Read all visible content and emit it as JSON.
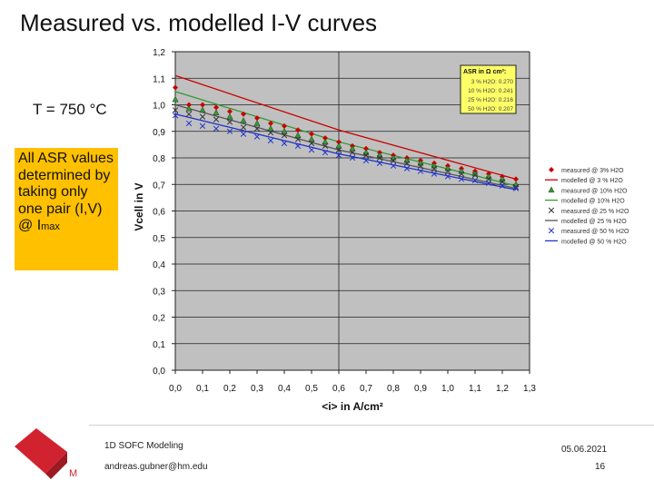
{
  "slide": {
    "title": "Measured vs. modelled I-V curves",
    "temperature": "T = 750 °C",
    "note_main": "All ASR values determined by taking only one pair (I,V) @ I",
    "note_sub": "max"
  },
  "chart_data": {
    "type": "line",
    "xlabel": "<i> in A/cm²",
    "ylabel": "Vcell in V",
    "xlim": [
      0.0,
      1.3
    ],
    "ylim": [
      0.0,
      1.2
    ],
    "xticks": [
      "0,0",
      "0,1",
      "0,2",
      "0,3",
      "0,4",
      "0,5",
      "0,6",
      "0,7",
      "0,8",
      "0,9",
      "1,0",
      "1,1",
      "1,2",
      "1,3"
    ],
    "yticks": [
      "0,0",
      "0,1",
      "0,2",
      "0,3",
      "0,4",
      "0,5",
      "0,6",
      "0,7",
      "0,8",
      "0,9",
      "1,0",
      "1,1",
      "1,2"
    ],
    "grid": true,
    "legend_position": "right",
    "asr_box": {
      "title": "ASR in Ω cm²:",
      "rows": [
        "3 % H2O: 0.270",
        "10 % H2O: 0.241",
        "25 % H2O: 0.216",
        "50 % H2O: 0.207"
      ]
    },
    "measured": [
      {
        "name": "measured @ 3% H2O",
        "color": "#cc0000",
        "marker": "diamond",
        "x": [
          0.0,
          0.05,
          0.1,
          0.15,
          0.2,
          0.25,
          0.3,
          0.35,
          0.4,
          0.45,
          0.5,
          0.55,
          0.6,
          0.65,
          0.7,
          0.75,
          0.8,
          0.85,
          0.9,
          0.95,
          1.0,
          1.05,
          1.1,
          1.15,
          1.2,
          1.25
        ],
        "y": [
          1.065,
          1.0,
          1.0,
          0.99,
          0.975,
          0.965,
          0.95,
          0.93,
          0.92,
          0.905,
          0.89,
          0.875,
          0.86,
          0.845,
          0.835,
          0.82,
          0.81,
          0.8,
          0.79,
          0.78,
          0.77,
          0.76,
          0.75,
          0.74,
          0.73,
          0.72
        ]
      },
      {
        "name": "measured @ 10% H2O",
        "color": "#339933",
        "marker": "triangle",
        "x": [
          0.0,
          0.05,
          0.1,
          0.15,
          0.2,
          0.25,
          0.3,
          0.35,
          0.4,
          0.45,
          0.5,
          0.55,
          0.6,
          0.65,
          0.7,
          0.75,
          0.8,
          0.85,
          0.9,
          0.95,
          1.0,
          1.05,
          1.1,
          1.15,
          1.2,
          1.25
        ],
        "y": [
          1.02,
          0.985,
          0.98,
          0.97,
          0.955,
          0.94,
          0.93,
          0.91,
          0.9,
          0.885,
          0.87,
          0.86,
          0.845,
          0.835,
          0.82,
          0.81,
          0.8,
          0.79,
          0.78,
          0.77,
          0.76,
          0.75,
          0.74,
          0.73,
          0.72,
          0.7
        ]
      },
      {
        "name": "measured @ 25 % H2O",
        "color": "#333333",
        "marker": "x",
        "x": [
          0.0,
          0.05,
          0.1,
          0.15,
          0.2,
          0.25,
          0.3,
          0.35,
          0.4,
          0.45,
          0.5,
          0.55,
          0.6,
          0.65,
          0.7,
          0.75,
          0.8,
          0.85,
          0.9,
          0.95,
          1.0,
          1.05,
          1.1,
          1.15,
          1.2,
          1.25
        ],
        "y": [
          0.98,
          0.965,
          0.955,
          0.945,
          0.935,
          0.915,
          0.91,
          0.895,
          0.885,
          0.87,
          0.855,
          0.845,
          0.83,
          0.82,
          0.81,
          0.8,
          0.79,
          0.78,
          0.77,
          0.76,
          0.75,
          0.74,
          0.735,
          0.72,
          0.71,
          0.69
        ]
      },
      {
        "name": "measured @ 50 % H2O",
        "color": "#2233cc",
        "marker": "x",
        "x": [
          0.0,
          0.05,
          0.1,
          0.15,
          0.2,
          0.25,
          0.3,
          0.35,
          0.4,
          0.45,
          0.5,
          0.55,
          0.6,
          0.65,
          0.7,
          0.75,
          0.8,
          0.85,
          0.9,
          0.95,
          1.0,
          1.05,
          1.1,
          1.15,
          1.2,
          1.25
        ],
        "y": [
          0.96,
          0.93,
          0.92,
          0.91,
          0.9,
          0.89,
          0.88,
          0.865,
          0.855,
          0.845,
          0.83,
          0.82,
          0.81,
          0.8,
          0.79,
          0.78,
          0.77,
          0.76,
          0.75,
          0.74,
          0.73,
          0.72,
          0.715,
          0.705,
          0.695,
          0.685
        ]
      }
    ],
    "modelled": [
      {
        "name": "modelled @ 3 % H2O",
        "color": "#cc0000",
        "x": [
          0.0,
          0.6,
          1.25
        ],
        "y": [
          1.11,
          0.905,
          0.72
        ]
      },
      {
        "name": "modelled @ 10% H2O",
        "color": "#339933",
        "x": [
          0.0,
          0.6,
          1.25
        ],
        "y": [
          1.05,
          0.86,
          0.695
        ]
      },
      {
        "name": "modelled @ 25 % H2O",
        "color": "#555555",
        "x": [
          0.0,
          0.6,
          1.25
        ],
        "y": [
          1.0,
          0.83,
          0.685
        ]
      },
      {
        "name": "modelled @ 50 % H2O",
        "color": "#2233cc",
        "x": [
          0.0,
          0.6,
          1.25
        ],
        "y": [
          0.965,
          0.815,
          0.68
        ]
      }
    ],
    "legend": [
      "measured @ 3% H2O",
      "modelled @ 3 % H2O",
      "measured @ 10% H2O",
      "modelled @ 10% H2O",
      "measured @ 25 % H2O",
      "modelled @ 25 % H2O",
      "measured @ 50 % H2O",
      "modelled @ 50 % H2O"
    ]
  },
  "footer": {
    "course": "1D SOFC Modeling",
    "email": "andreas.gubner@hm.edu",
    "date": "05.06.2021",
    "page": "16",
    "logo_letter": "M"
  },
  "colors": {
    "plot_bg": "#c0c0c0",
    "note_bg": "#ffc000",
    "asr_box_bg": "#ffff66",
    "logo_red": "#d1232f"
  }
}
